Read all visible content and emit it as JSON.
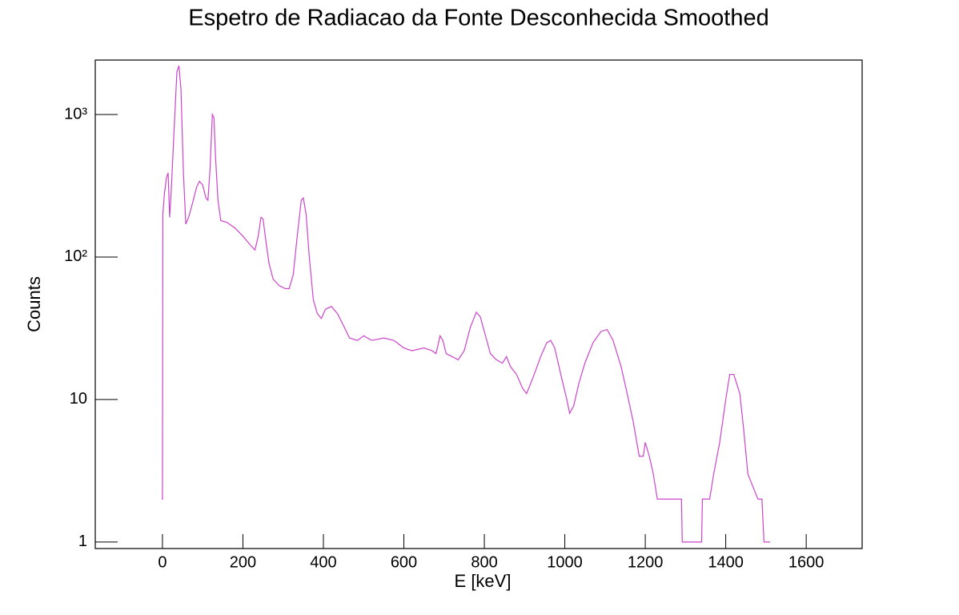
{
  "chart_data": {
    "type": "line",
    "title": "Espetro de Radiacao da Fonte Desconhecida Smoothed",
    "x_label": "E [keV]",
    "y_label": "Counts",
    "color": "#cc44cc",
    "log_y": true,
    "xlim": [
      -167,
      1739
    ],
    "ylim": [
      0.9,
      2410
    ],
    "xticks": [
      0,
      200,
      400,
      600,
      800,
      1000,
      1200,
      1400,
      1600
    ],
    "yticks": [
      1,
      10,
      {
        "value": 100,
        "label": "10²"
      },
      {
        "value": 1000,
        "label": "10³"
      }
    ],
    "series": [
      {
        "name": "Counts",
        "color": "#cc44cc",
        "x": [
          -2,
          0,
          1,
          5,
          10,
          14,
          18,
          22,
          30,
          36,
          41,
          46,
          52,
          58,
          65,
          75,
          85,
          92,
          100,
          108,
          113,
          118,
          124,
          128,
          132,
          138,
          145,
          160,
          180,
          200,
          220,
          230,
          238,
          245,
          250,
          257,
          265,
          275,
          290,
          305,
          315,
          325,
          335,
          345,
          350,
          357,
          365,
          375,
          385,
          395,
          405,
          420,
          435,
          450,
          465,
          485,
          500,
          520,
          550,
          575,
          600,
          620,
          650,
          670,
          680,
          690,
          697,
          705,
          720,
          735,
          750,
          765,
          780,
          790,
          800,
          815,
          830,
          845,
          855,
          865,
          880,
          895,
          905,
          920,
          940,
          955,
          965,
          975,
          990,
          1005,
          1012,
          1022,
          1035,
          1050,
          1070,
          1090,
          1105,
          1120,
          1140,
          1155,
          1170,
          1185,
          1195,
          1200,
          1210,
          1220,
          1230,
          1250,
          1290,
          1292,
          1340,
          1342,
          1360,
          1370,
          1385,
          1400,
          1410,
          1420,
          1435,
          1445,
          1455,
          1480,
          1490,
          1495,
          1510
        ],
        "values": [
          2,
          2,
          200,
          280,
          360,
          390,
          190,
          300,
          900,
          2000,
          2200,
          1500,
          400,
          170,
          190,
          240,
          310,
          340,
          320,
          260,
          250,
          400,
          1000,
          950,
          500,
          250,
          180,
          175,
          160,
          140,
          120,
          112,
          140,
          190,
          185,
          130,
          90,
          70,
          63,
          60,
          60,
          75,
          140,
          250,
          260,
          200,
          100,
          50,
          40,
          37,
          43,
          45,
          40,
          33,
          27,
          26,
          28,
          26,
          27,
          26,
          23,
          22,
          23,
          22,
          21,
          28,
          26,
          21,
          20,
          19,
          22,
          32,
          41,
          38,
          30,
          21,
          19,
          18,
          20,
          17,
          15,
          12,
          11,
          14,
          20,
          25,
          26,
          23,
          15,
          10,
          8,
          9,
          13,
          18,
          25,
          30,
          31,
          26,
          17,
          11,
          7,
          4,
          4,
          5,
          4,
          3,
          2,
          2,
          2,
          1,
          1,
          2,
          2,
          3,
          5,
          10,
          15,
          15,
          11,
          6,
          3,
          2,
          2,
          1,
          1
        ]
      }
    ]
  }
}
